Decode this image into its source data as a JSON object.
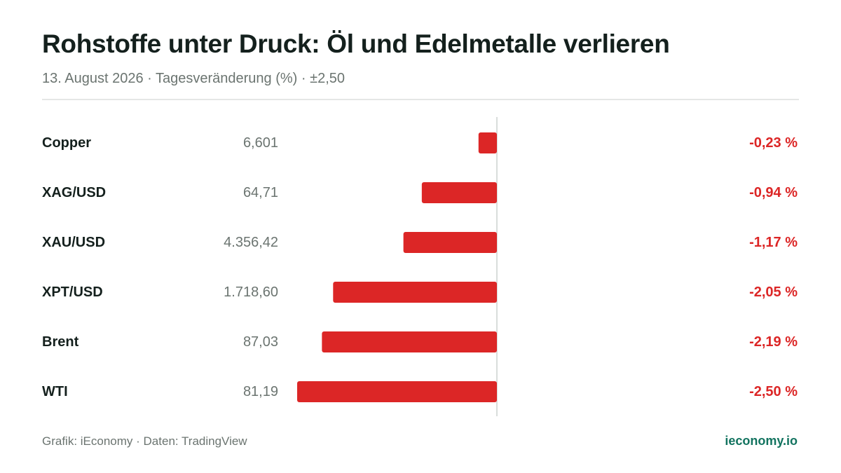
{
  "header": {
    "title": "Rohstoffe unter Druck: Öl und Edelmetalle verlieren",
    "subtitle": "13. August 2026 · Tagesveränderung (%) · ±2,50"
  },
  "footer": {
    "source": "Grafik: iEconomy · Daten: TradingView",
    "brand": "ieconomy.io"
  },
  "colors": {
    "negative": "#dc2626",
    "axis": "#d9dddb",
    "brand": "#12735f"
  },
  "chart_data": {
    "type": "bar",
    "orientation": "horizontal",
    "xlim": [
      -2.5,
      2.5
    ],
    "grid": false,
    "rows": [
      {
        "name": "Copper",
        "price": "6,601",
        "change": -0.23,
        "change_label": "-0,23 %"
      },
      {
        "name": "XAG/USD",
        "price": "64,71",
        "change": -0.94,
        "change_label": "-0,94 %"
      },
      {
        "name": "XAU/USD",
        "price": "4.356,42",
        "change": -1.17,
        "change_label": "-1,17 %"
      },
      {
        "name": "XPT/USD",
        "price": "1.718,60",
        "change": -2.05,
        "change_label": "-2,05 %"
      },
      {
        "name": "Brent",
        "price": "87,03",
        "change": -2.19,
        "change_label": "-2,19 %"
      },
      {
        "name": "WTI",
        "price": "81,19",
        "change": -2.5,
        "change_label": "-2,50 %"
      }
    ]
  }
}
